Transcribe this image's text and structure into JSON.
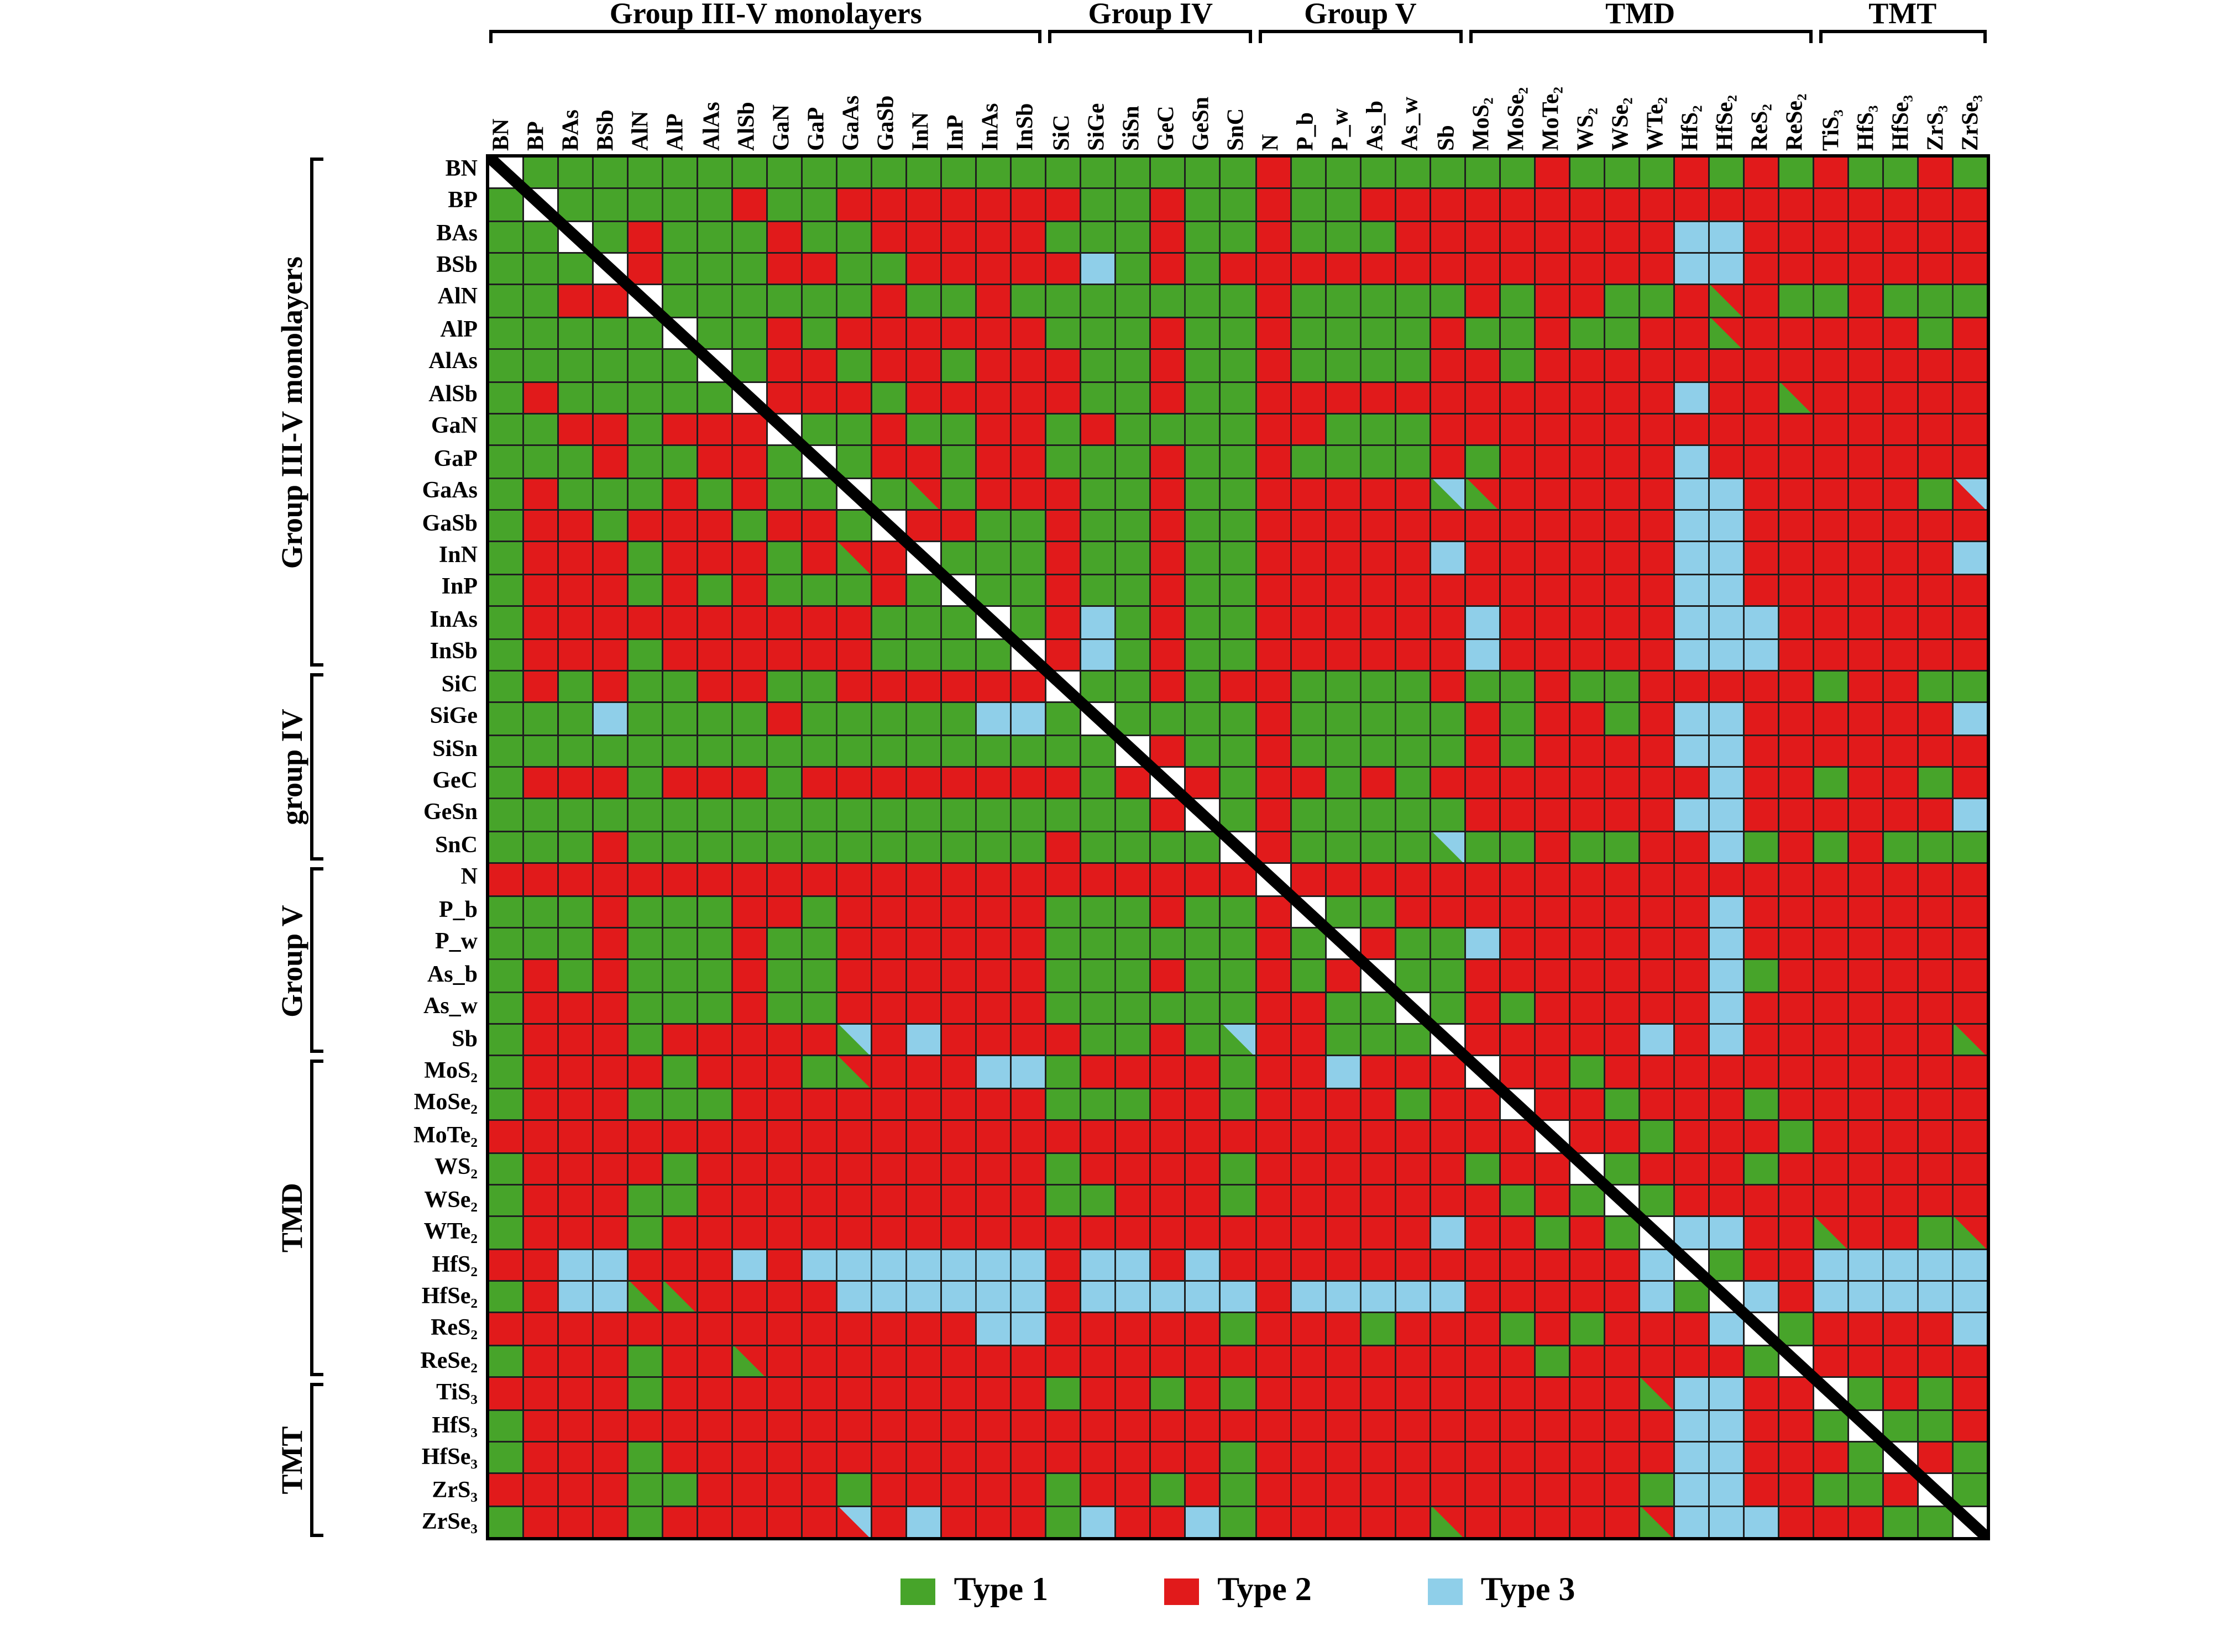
{
  "figure": {
    "kind": "band-alignment type matrix of 2D materials",
    "background": "#ffffff",
    "gridline_color": "#1f1f1f",
    "diagonal": "black line over white diagonal cells"
  },
  "chart_data": {
    "type": "heatmap",
    "symmetric": true,
    "labels": [
      "BN",
      "BP",
      "BAs",
      "BSb",
      "AlN",
      "AlP",
      "AlAs",
      "AlSb",
      "GaN",
      "GaP",
      "GaAs",
      "GaSb",
      "InN",
      "InP",
      "InAs",
      "InSb",
      "SiC",
      "SiGe",
      "SiSn",
      "GeC",
      "GeSn",
      "SnC",
      "N",
      "P_b",
      "P_w",
      "As_b",
      "As_w",
      "Sb",
      "MoS₂",
      "MoSe₂",
      "MoTe₂",
      "WS₂",
      "WSe₂",
      "WTe₂",
      "HfS₂",
      "HfSe₂",
      "ReS₂",
      "ReSe₂",
      "TiS₃",
      "HfS₃",
      "HfSe₃",
      "ZrS₃",
      "ZrSe₃"
    ],
    "groups": [
      {
        "label_top": "Group III-V monolayers",
        "label_left": "Group III-V monolayers",
        "start": 0,
        "count": 16
      },
      {
        "label_top": "Group IV",
        "label_left": "group IV",
        "start": 16,
        "count": 6
      },
      {
        "label_top": "Group V",
        "label_left": "Group V",
        "start": 22,
        "count": 6
      },
      {
        "label_top": "TMD",
        "label_left": "TMD",
        "start": 28,
        "count": 10
      },
      {
        "label_top": "TMT",
        "label_left": "TMT",
        "start": 38,
        "count": 5
      }
    ],
    "legend": [
      {
        "label": "Type 1",
        "value": 1,
        "color": "#47a42a"
      },
      {
        "label": "Type 2",
        "value": 2,
        "color": "#e11a1b"
      },
      {
        "label": "Type 3",
        "value": 3,
        "color": "#8fcfe9"
      }
    ],
    "encoding": {
      "1": "Type 1 (green)",
      "2": "Type 2 (red)",
      "3": "Type 3 (blue)",
      "0": "diagonal (self pair)",
      "a": "split Type1/Type2",
      "b": "split Type1/Type3",
      "c": "split Type2/Type3"
    },
    "matrix_upper": [
      [
        1,
        1,
        1,
        1,
        1,
        1,
        1,
        1,
        1,
        1,
        1,
        1,
        1,
        1,
        1,
        1,
        1,
        1,
        1,
        1,
        1,
        2,
        1,
        1,
        1,
        1,
        1,
        1,
        1,
        2,
        1,
        1,
        1,
        2,
        1,
        2,
        1,
        2,
        1,
        1,
        2,
        1
      ],
      [
        1,
        1,
        1,
        1,
        1,
        2,
        1,
        1,
        2,
        2,
        2,
        2,
        2,
        2,
        2,
        1,
        1,
        2,
        1,
        1,
        2,
        1,
        1,
        2,
        2,
        2,
        2,
        2,
        2,
        2,
        2,
        2,
        2,
        2,
        2,
        2,
        2,
        2,
        2,
        2,
        2
      ],
      [
        1,
        2,
        1,
        1,
        1,
        2,
        1,
        1,
        2,
        2,
        2,
        2,
        2,
        1,
        1,
        1,
        2,
        1,
        1,
        2,
        1,
        1,
        1,
        2,
        2,
        2,
        2,
        2,
        2,
        2,
        2,
        3,
        3,
        2,
        2,
        2,
        2,
        2,
        2,
        2
      ],
      [
        2,
        1,
        1,
        1,
        2,
        2,
        1,
        1,
        2,
        2,
        2,
        2,
        2,
        3,
        1,
        2,
        1,
        2,
        2,
        2,
        2,
        2,
        2,
        2,
        2,
        2,
        2,
        2,
        2,
        2,
        3,
        3,
        2,
        2,
        2,
        2,
        2,
        2,
        2
      ],
      [
        1,
        1,
        1,
        1,
        1,
        1,
        2,
        1,
        1,
        2,
        1,
        1,
        1,
        1,
        1,
        1,
        1,
        2,
        1,
        1,
        1,
        1,
        1,
        2,
        1,
        2,
        2,
        1,
        1,
        2,
        "a",
        2,
        1,
        1,
        2,
        1,
        1,
        1
      ],
      [
        1,
        1,
        2,
        1,
        2,
        2,
        2,
        2,
        2,
        2,
        1,
        1,
        1,
        2,
        1,
        1,
        2,
        1,
        1,
        1,
        1,
        2,
        1,
        1,
        2,
        1,
        1,
        2,
        2,
        "a",
        2,
        2,
        2,
        2,
        2,
        1,
        2
      ],
      [
        1,
        2,
        2,
        1,
        2,
        2,
        1,
        2,
        2,
        2,
        1,
        1,
        2,
        1,
        1,
        2,
        1,
        1,
        1,
        1,
        2,
        2,
        1,
        2,
        2,
        2,
        2,
        2,
        2,
        2,
        2,
        2,
        2,
        2,
        2,
        2
      ],
      [
        2,
        2,
        2,
        1,
        2,
        2,
        2,
        2,
        2,
        1,
        1,
        2,
        1,
        1,
        2,
        2,
        2,
        2,
        2,
        2,
        2,
        2,
        2,
        2,
        2,
        2,
        3,
        2,
        2,
        "a",
        2,
        2,
        2,
        2,
        2
      ],
      [
        1,
        1,
        2,
        1,
        1,
        2,
        2,
        1,
        2,
        1,
        1,
        1,
        1,
        2,
        2,
        1,
        1,
        1,
        2,
        2,
        2,
        2,
        2,
        2,
        2,
        2,
        2,
        2,
        2,
        2,
        2,
        2,
        2,
        2
      ],
      [
        1,
        2,
        2,
        1,
        2,
        2,
        1,
        1,
        1,
        2,
        1,
        1,
        2,
        1,
        1,
        1,
        1,
        2,
        1,
        2,
        2,
        2,
        2,
        2,
        3,
        2,
        2,
        2,
        2,
        2,
        2,
        2,
        2
      ],
      [
        1,
        "a",
        1,
        2,
        2,
        2,
        1,
        1,
        2,
        1,
        1,
        2,
        2,
        2,
        2,
        2,
        "b",
        "a",
        2,
        2,
        2,
        2,
        2,
        3,
        3,
        2,
        2,
        2,
        2,
        2,
        1,
        "c"
      ],
      [
        2,
        2,
        1,
        1,
        2,
        1,
        1,
        2,
        1,
        1,
        2,
        2,
        2,
        2,
        2,
        2,
        2,
        2,
        2,
        2,
        2,
        2,
        3,
        3,
        2,
        2,
        2,
        2,
        2,
        2,
        2
      ],
      [
        1,
        1,
        1,
        2,
        1,
        1,
        2,
        1,
        1,
        2,
        2,
        2,
        2,
        2,
        3,
        2,
        2,
        2,
        2,
        2,
        2,
        3,
        3,
        2,
        2,
        2,
        2,
        2,
        2,
        3
      ],
      [
        1,
        1,
        2,
        1,
        1,
        2,
        1,
        1,
        2,
        2,
        2,
        2,
        2,
        2,
        2,
        2,
        2,
        2,
        2,
        2,
        3,
        3,
        2,
        2,
        2,
        2,
        2,
        2,
        2
      ],
      [
        1,
        2,
        3,
        1,
        2,
        1,
        1,
        2,
        2,
        2,
        2,
        2,
        2,
        3,
        2,
        2,
        2,
        2,
        2,
        3,
        3,
        3,
        2,
        2,
        2,
        2,
        2,
        2
      ],
      [
        2,
        3,
        1,
        2,
        1,
        1,
        2,
        2,
        2,
        2,
        2,
        2,
        3,
        2,
        2,
        2,
        2,
        2,
        3,
        3,
        3,
        2,
        2,
        2,
        2,
        2,
        2
      ],
      [
        1,
        1,
        2,
        1,
        2,
        2,
        1,
        1,
        1,
        1,
        2,
        1,
        1,
        2,
        1,
        1,
        2,
        2,
        2,
        2,
        2,
        1,
        2,
        2,
        1,
        1
      ],
      [
        1,
        1,
        1,
        1,
        2,
        1,
        1,
        1,
        1,
        1,
        2,
        1,
        2,
        2,
        1,
        2,
        3,
        3,
        2,
        2,
        2,
        2,
        2,
        2,
        3
      ],
      [
        2,
        1,
        1,
        2,
        1,
        1,
        1,
        1,
        1,
        2,
        1,
        2,
        2,
        2,
        2,
        3,
        3,
        2,
        2,
        2,
        2,
        2,
        2,
        2
      ],
      [
        2,
        1,
        2,
        2,
        1,
        2,
        1,
        2,
        2,
        2,
        2,
        2,
        2,
        2,
        2,
        3,
        2,
        2,
        1,
        2,
        2,
        1,
        2
      ],
      [
        1,
        2,
        1,
        1,
        1,
        1,
        1,
        2,
        2,
        2,
        2,
        2,
        2,
        3,
        3,
        2,
        2,
        2,
        2,
        2,
        2,
        3
      ],
      [
        2,
        1,
        1,
        1,
        1,
        "b",
        1,
        1,
        2,
        1,
        1,
        2,
        2,
        3,
        1,
        2,
        1,
        2,
        1,
        1,
        1
      ],
      [
        2,
        2,
        2,
        2,
        2,
        2,
        2,
        2,
        2,
        2,
        2,
        2,
        2,
        2,
        2,
        2,
        2,
        2,
        2,
        2
      ],
      [
        1,
        1,
        2,
        2,
        2,
        2,
        2,
        2,
        2,
        2,
        2,
        3,
        2,
        2,
        2,
        2,
        2,
        2,
        2
      ],
      [
        2,
        1,
        1,
        3,
        2,
        2,
        2,
        2,
        2,
        2,
        3,
        2,
        2,
        2,
        2,
        2,
        2,
        2
      ],
      [
        1,
        1,
        2,
        2,
        2,
        2,
        2,
        2,
        2,
        3,
        1,
        2,
        2,
        2,
        2,
        2,
        2
      ],
      [
        1,
        2,
        1,
        2,
        2,
        2,
        2,
        2,
        3,
        2,
        2,
        2,
        2,
        2,
        2,
        2
      ],
      [
        2,
        2,
        2,
        2,
        2,
        3,
        2,
        3,
        2,
        2,
        2,
        2,
        2,
        2,
        "a"
      ],
      [
        2,
        2,
        1,
        2,
        2,
        2,
        2,
        2,
        2,
        2,
        2,
        2,
        2,
        2
      ],
      [
        2,
        2,
        1,
        2,
        2,
        2,
        1,
        2,
        2,
        2,
        2,
        2,
        2
      ],
      [
        2,
        2,
        1,
        2,
        2,
        2,
        1,
        2,
        2,
        2,
        2,
        2
      ],
      [
        1,
        2,
        2,
        2,
        1,
        2,
        2,
        2,
        2,
        2,
        2
      ],
      [
        1,
        2,
        2,
        2,
        2,
        2,
        2,
        2,
        2,
        2
      ],
      [
        3,
        3,
        2,
        2,
        "a",
        2,
        2,
        1,
        "a"
      ],
      [
        1,
        2,
        2,
        3,
        3,
        3,
        3,
        3
      ],
      [
        3,
        2,
        3,
        3,
        3,
        3,
        3
      ],
      [
        1,
        2,
        2,
        2,
        2,
        3
      ],
      [
        2,
        2,
        2,
        2,
        2
      ],
      [
        1,
        2,
        1,
        2
      ],
      [
        1,
        1,
        2
      ],
      [
        2,
        1
      ],
      [
        1
      ]
    ]
  }
}
